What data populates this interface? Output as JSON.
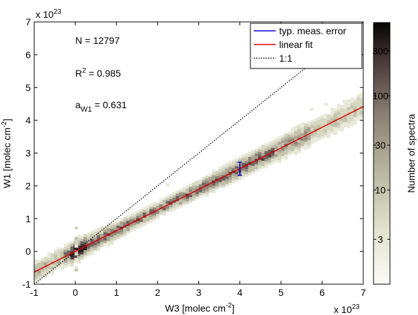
{
  "chart_data": {
    "type": "heatmap",
    "x_exponent_label": "x 10",
    "x_exponent_power": "23",
    "y_exponent_label": "x 10",
    "y_exponent_power": "23",
    "xlabel_main": "W3 [molec cm",
    "xlabel_sup": "-2",
    "xlabel_end": "]",
    "ylabel_main": "W1 [molec cm",
    "ylabel_sup": "-2",
    "ylabel_end": "]",
    "xlim": [
      -1,
      7
    ],
    "ylim": [
      -1,
      7
    ],
    "x_ticks": [
      "-1",
      "0",
      "1",
      "2",
      "3",
      "4",
      "5",
      "6",
      "7"
    ],
    "y_ticks": [
      "-1",
      "0",
      "1",
      "2",
      "3",
      "4",
      "5",
      "6",
      "7"
    ],
    "annotations": {
      "n_text": "N = 12797",
      "r2_main": "R",
      "r2_sup": "2",
      "r2_value": " = 0.985",
      "a_main": "a",
      "a_sub": "W1",
      "a_value": " = 0.631"
    },
    "legend": {
      "placement": "top-right",
      "entries": [
        {
          "label": "typ. meas. error",
          "color": "#0000cc",
          "style": "solid"
        },
        {
          "label": "linear fit",
          "color": "#dd0000",
          "style": "solid"
        },
        {
          "label": "1:1",
          "color": "#000000",
          "style": "dotted"
        }
      ]
    },
    "fit_line": {
      "slope": 0.631,
      "intercept": 0.0,
      "color": "#dd0000"
    },
    "one_to_one": {
      "slope": 1.0,
      "intercept": 0.0,
      "color": "#000000"
    },
    "error_bar": {
      "x": 4.0,
      "y": 2.52,
      "y_low": 2.32,
      "y_high": 2.72,
      "color": "#0000cc"
    },
    "density": {
      "along_fit_x_range": [
        -1,
        7
      ],
      "max_count_x": 0.0
    },
    "colorbar": {
      "label": "Number of spectra",
      "scale": "log",
      "range": [
        1,
        600
      ],
      "ticks": [
        {
          "value": 3,
          "label": "3"
        },
        {
          "value": 10,
          "label": "10"
        },
        {
          "value": 30,
          "label": "30"
        },
        {
          "value": 100,
          "label": "100"
        },
        {
          "value": 300,
          "label": "300"
        }
      ]
    }
  }
}
